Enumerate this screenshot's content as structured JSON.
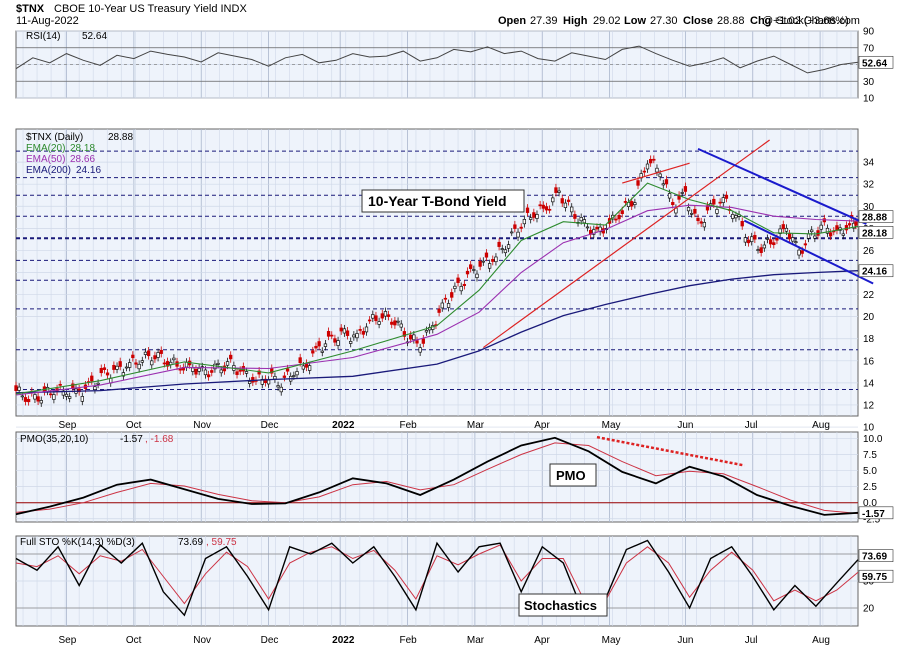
{
  "header": {
    "symbol": "$TNX",
    "name": "CBOE 10-Year US Treasury Yield INDX",
    "date": "11-Aug-2022",
    "copyright": "@ StockCharts.com",
    "open_label": "Open",
    "open": "27.39",
    "high_label": "High",
    "high": "29.02",
    "low_label": "Low",
    "low": "27.30",
    "close_label": "Close",
    "close": "28.88",
    "chg_label": "Chg",
    "chg": "+1.02 (+3.66%)"
  },
  "annotations": {
    "price": "10-Year T-Bond Yield",
    "pmo": "PMO",
    "sto": "Stochastics"
  },
  "colors": {
    "price_up": "#111111",
    "price_down": "#cc0000",
    "ema20": "#2e8b2e",
    "ema50": "#9b30b0",
    "ema200": "#1a1a7a",
    "pmo_line": "#000000",
    "pmo_signal": "#cc3344",
    "sto_k": "#000000",
    "sto_d": "#cc3344",
    "rsi": "#444444",
    "trend_blue": "#1a1acc",
    "trend_red": "#dd2222",
    "zero_line": "#990000"
  },
  "x_axis": {
    "labels": [
      "Sep",
      "Oct",
      "Nov",
      "Dec",
      "2022",
      "Feb",
      "Mar",
      "Apr",
      "May",
      "Jun",
      "Jul",
      "Aug"
    ],
    "bold_label": "2022"
  },
  "chart_data": [
    {
      "type": "line",
      "panel": "rsi",
      "title": "RSI(14) 52.64",
      "legend_label": "RSI(14)",
      "legend_value": "52.64",
      "y_ticks": [
        "90",
        "70",
        "50",
        "30",
        "10"
      ],
      "ylim": [
        10,
        90
      ],
      "levels": [
        70,
        30
      ],
      "last_value_label": "52.64",
      "x": [
        0,
        0.02,
        0.04,
        0.06,
        0.08,
        0.1,
        0.12,
        0.14,
        0.16,
        0.18,
        0.2,
        0.22,
        0.24,
        0.26,
        0.28,
        0.3,
        0.32,
        0.34,
        0.36,
        0.38,
        0.4,
        0.42,
        0.44,
        0.46,
        0.48,
        0.5,
        0.52,
        0.54,
        0.56,
        0.58,
        0.6,
        0.62,
        0.64,
        0.66,
        0.68,
        0.7,
        0.72,
        0.74,
        0.76,
        0.78,
        0.8,
        0.82,
        0.84,
        0.86,
        0.88,
        0.9,
        0.92,
        0.94,
        0.96,
        0.98,
        1.0
      ],
      "values": [
        45,
        58,
        52,
        63,
        55,
        49,
        61,
        57,
        66,
        62,
        59,
        53,
        64,
        60,
        56,
        48,
        58,
        62,
        52,
        55,
        63,
        59,
        60,
        66,
        54,
        58,
        68,
        65,
        71,
        63,
        66,
        57,
        54,
        64,
        60,
        56,
        68,
        72,
        63,
        55,
        48,
        52,
        58,
        46,
        54,
        60,
        50,
        40,
        44,
        50,
        52.6
      ]
    },
    {
      "type": "line",
      "panel": "price",
      "title": "$TNX (Daily) 28.88",
      "legend_label": "$TNX (Daily)",
      "legend_value": "28.88",
      "y_ticks": [
        "10",
        "12",
        "14",
        "16",
        "18",
        "20",
        "22",
        "24",
        "26",
        "28",
        "30",
        "32",
        "34"
      ],
      "ylim": [
        11,
        37
      ],
      "h_lines": [
        13.4,
        17.0,
        20.7,
        23.3,
        25.1,
        27.1,
        29.1,
        31.0,
        32.6,
        35.0
      ],
      "h_line_thick": 27.1,
      "x": [
        0,
        0.015,
        0.03,
        0.045,
        0.06,
        0.075,
        0.09,
        0.105,
        0.12,
        0.135,
        0.15,
        0.165,
        0.18,
        0.195,
        0.21,
        0.225,
        0.24,
        0.255,
        0.27,
        0.285,
        0.3,
        0.315,
        0.33,
        0.345,
        0.36,
        0.375,
        0.39,
        0.405,
        0.42,
        0.435,
        0.45,
        0.465,
        0.48,
        0.495,
        0.51,
        0.525,
        0.54,
        0.555,
        0.57,
        0.585,
        0.6,
        0.615,
        0.63,
        0.645,
        0.66,
        0.675,
        0.69,
        0.705,
        0.72,
        0.735,
        0.75,
        0.765,
        0.78,
        0.795,
        0.81,
        0.825,
        0.84,
        0.855,
        0.87,
        0.885,
        0.9,
        0.915,
        0.93,
        0.945,
        0.96,
        0.975,
        0.99,
        1.0
      ],
      "values": [
        13.3,
        12.6,
        12.9,
        13.4,
        13.2,
        13.1,
        13.8,
        14.7,
        15.1,
        15.7,
        16.2,
        16.6,
        16.0,
        15.5,
        15.4,
        14.9,
        15.3,
        15.7,
        14.8,
        14.2,
        14.6,
        14.1,
        15.1,
        15.6,
        17.2,
        17.9,
        18.4,
        18.1,
        19.6,
        20.1,
        19.7,
        18.2,
        17.5,
        19.2,
        21.3,
        22.6,
        23.9,
        24.8,
        25.5,
        26.9,
        28.5,
        29.4,
        29.8,
        31.2,
        29.5,
        28.3,
        27.6,
        28.4,
        29.6,
        30.8,
        34.3,
        33.2,
        30.1,
        31.0,
        28.2,
        29.8,
        30.6,
        29.3,
        27.1,
        26.3,
        26.9,
        28.1,
        25.8,
        27.4,
        28.1,
        27.5,
        28.3,
        28.88
      ],
      "ema20": {
        "name": "EMA(20)",
        "value": "28.18",
        "x": [
          0,
          0.1,
          0.2,
          0.3,
          0.4,
          0.5,
          0.55,
          0.6,
          0.65,
          0.7,
          0.75,
          0.8,
          0.85,
          0.9,
          0.95,
          1.0
        ],
        "values": [
          13.0,
          14.2,
          15.9,
          14.9,
          16.9,
          19.2,
          22.4,
          26.9,
          28.6,
          28.3,
          32.1,
          30.6,
          29.6,
          27.6,
          27.5,
          28.18
        ]
      },
      "ema50": {
        "name": "EMA(50)",
        "value": "28.66",
        "x": [
          0,
          0.1,
          0.2,
          0.3,
          0.4,
          0.5,
          0.55,
          0.6,
          0.65,
          0.7,
          0.75,
          0.8,
          0.85,
          0.9,
          0.95,
          1.0
        ],
        "values": [
          12.9,
          13.8,
          15.4,
          15.3,
          16.3,
          18.4,
          20.4,
          24.0,
          26.7,
          27.9,
          29.6,
          30.1,
          29.9,
          29.1,
          28.8,
          28.66
        ]
      },
      "ema200": {
        "name": "EMA(200)",
        "value": "24.16",
        "x": [
          0,
          0.1,
          0.2,
          0.3,
          0.4,
          0.5,
          0.55,
          0.6,
          0.65,
          0.7,
          0.75,
          0.8,
          0.85,
          0.9,
          0.95,
          1.0
        ],
        "values": [
          13.1,
          13.3,
          13.9,
          14.3,
          14.6,
          15.7,
          16.9,
          18.6,
          20.1,
          21.1,
          22.0,
          22.8,
          23.4,
          23.8,
          24.0,
          24.16
        ]
      },
      "last_value_labels": [
        "28.88",
        "28.18",
        "24.16"
      ]
    },
    {
      "type": "line",
      "panel": "pmo",
      "title": "PMO(35,20,10) -1.57, -1.68",
      "legend_label": "PMO(35,20,10)",
      "legend_value": "-1.57",
      "legend_signal": ", -1.68",
      "y_ticks": [
        "10.0",
        "7.5",
        "5.0",
        "2.5",
        "0.0",
        "-2.5"
      ],
      "ylim": [
        -3,
        11
      ],
      "zero": 0,
      "last_value_label": "-1.57",
      "x": [
        0,
        0.04,
        0.08,
        0.12,
        0.16,
        0.2,
        0.24,
        0.28,
        0.32,
        0.36,
        0.4,
        0.44,
        0.48,
        0.52,
        0.56,
        0.6,
        0.64,
        0.68,
        0.72,
        0.76,
        0.8,
        0.84,
        0.88,
        0.92,
        0.96,
        1.0
      ],
      "values": [
        -1.8,
        -0.6,
        0.8,
        2.8,
        3.6,
        2.1,
        0.6,
        -0.2,
        -0.1,
        1.6,
        3.8,
        3.0,
        1.2,
        3.6,
        6.4,
        8.9,
        10.1,
        8.0,
        4.8,
        3.0,
        5.6,
        4.1,
        1.2,
        -0.5,
        -1.9,
        -1.57
      ],
      "signal": [
        -1.5,
        -1.0,
        0.0,
        1.6,
        3.0,
        2.6,
        1.3,
        0.3,
        0.0,
        0.9,
        2.8,
        3.3,
        2.0,
        2.8,
        5.2,
        7.5,
        9.3,
        8.9,
        6.4,
        4.2,
        4.9,
        4.5,
        2.5,
        0.4,
        -1.2,
        -1.68
      ]
    },
    {
      "type": "line",
      "panel": "sto",
      "title": "Full STO %K(14,3) %D(3) 73.69, 59.75",
      "legend_label": "Full STO %K(14,3) %D(3)",
      "legend_value": "73.69",
      "legend_signal": ", 59.75",
      "y_ticks": [
        "80",
        "50",
        "20"
      ],
      "ylim": [
        0,
        100
      ],
      "levels": [
        80,
        20
      ],
      "last_value_labels": [
        "73.69",
        "59.75"
      ],
      "x": [
        0,
        0.025,
        0.05,
        0.075,
        0.1,
        0.125,
        0.15,
        0.175,
        0.2,
        0.225,
        0.25,
        0.275,
        0.3,
        0.325,
        0.35,
        0.375,
        0.4,
        0.425,
        0.45,
        0.475,
        0.5,
        0.525,
        0.55,
        0.575,
        0.6,
        0.625,
        0.65,
        0.675,
        0.7,
        0.725,
        0.75,
        0.775,
        0.8,
        0.825,
        0.85,
        0.875,
        0.9,
        0.925,
        0.95,
        0.975,
        1.0
      ],
      "values": [
        75,
        62,
        88,
        45,
        90,
        70,
        92,
        38,
        12,
        75,
        88,
        55,
        18,
        88,
        80,
        92,
        70,
        88,
        55,
        18,
        92,
        60,
        88,
        92,
        38,
        88,
        70,
        12,
        30,
        85,
        95,
        60,
        20,
        75,
        88,
        55,
        18,
        45,
        22,
        48,
        73.69
      ],
      "signal": [
        70,
        66,
        78,
        58,
        78,
        72,
        85,
        55,
        25,
        58,
        82,
        66,
        30,
        70,
        82,
        88,
        75,
        84,
        62,
        30,
        78,
        68,
        80,
        90,
        50,
        75,
        75,
        28,
        28,
        70,
        88,
        70,
        32,
        62,
        82,
        62,
        28,
        40,
        28,
        40,
        59.75
      ]
    }
  ]
}
